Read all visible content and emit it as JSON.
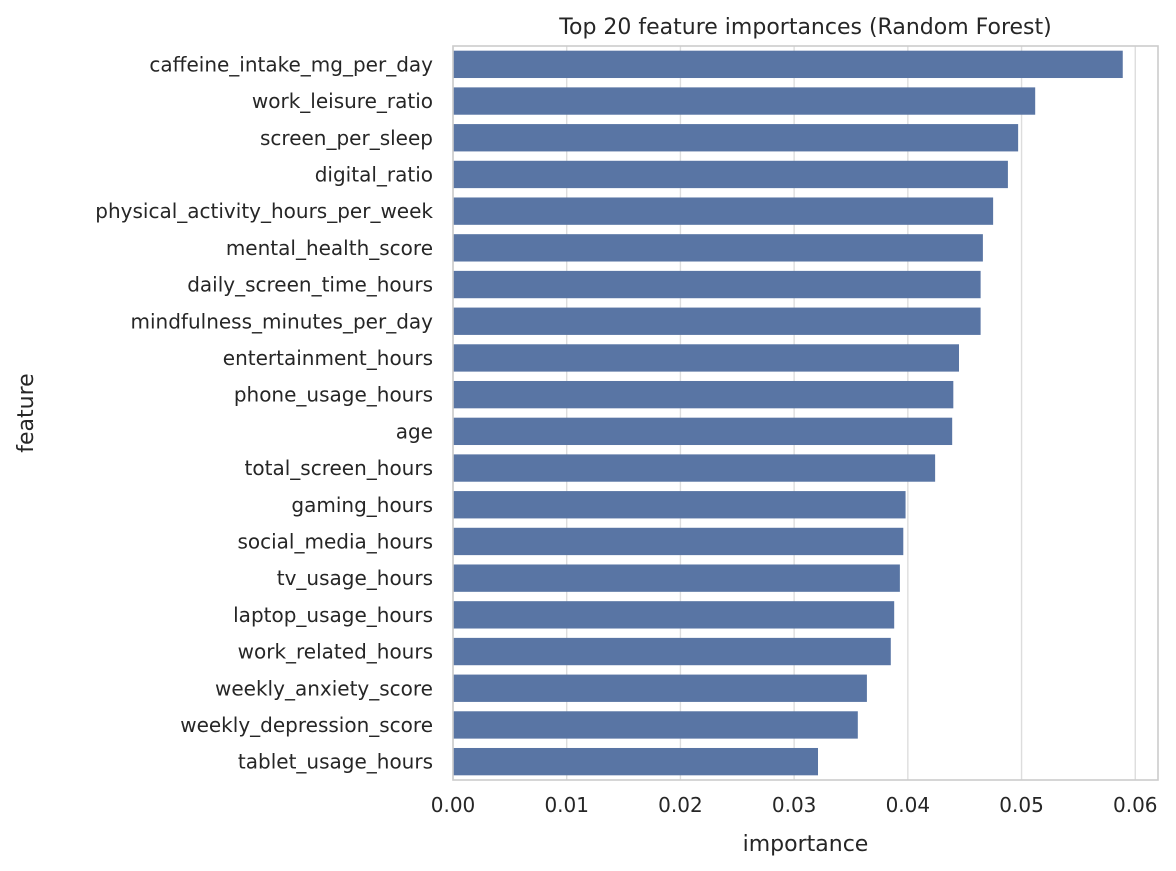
{
  "chart_data": {
    "type": "bar",
    "orientation": "horizontal",
    "title": "Top 20 feature importances (Random Forest)",
    "xlabel": "importance",
    "ylabel": "feature",
    "xlim": [
      0,
      0.062
    ],
    "xticks": [
      0.0,
      0.01,
      0.02,
      0.03,
      0.04,
      0.05,
      0.06
    ],
    "xtick_labels": [
      "0.00",
      "0.01",
      "0.02",
      "0.03",
      "0.04",
      "0.05",
      "0.06"
    ],
    "grid": "vertical",
    "bar_color": "#5975a4",
    "categories": [
      "caffeine_intake_mg_per_day",
      "work_leisure_ratio",
      "screen_per_sleep",
      "digital_ratio",
      "physical_activity_hours_per_week",
      "mental_health_score",
      "daily_screen_time_hours",
      "mindfulness_minutes_per_day",
      "entertainment_hours",
      "phone_usage_hours",
      "age",
      "total_screen_hours",
      "gaming_hours",
      "social_media_hours",
      "tv_usage_hours",
      "laptop_usage_hours",
      "work_related_hours",
      "weekly_anxiety_score",
      "weekly_depression_score",
      "tablet_usage_hours"
    ],
    "values": [
      0.0589,
      0.0512,
      0.0497,
      0.0488,
      0.0475,
      0.0466,
      0.0464,
      0.0464,
      0.0445,
      0.044,
      0.0439,
      0.0424,
      0.0398,
      0.0396,
      0.0393,
      0.0388,
      0.0385,
      0.0364,
      0.0356,
      0.0321
    ]
  }
}
